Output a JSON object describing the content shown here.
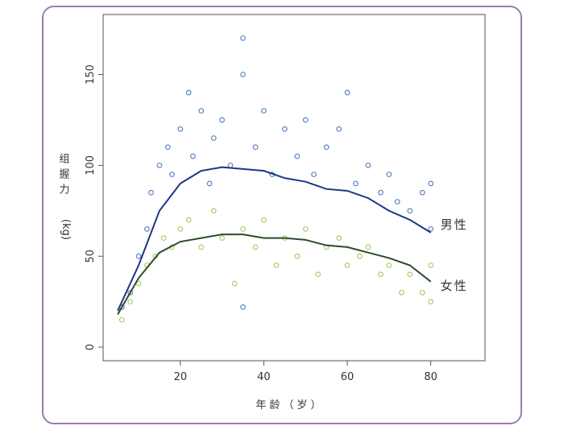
{
  "chart_data": {
    "type": "scatter",
    "xlabel": "年龄（岁）",
    "ylabel": "组握力",
    "ylabel_unit": "(kg)",
    "xlim": [
      1.5,
      93
    ],
    "ylim": [
      -7.5,
      183
    ],
    "xticks": [
      20,
      40,
      60,
      80
    ],
    "yticks": [
      0,
      50,
      100,
      150
    ],
    "series": [
      {
        "type": "scatter",
        "color": "#5b86c2",
        "x": [
          6,
          8,
          10,
          12,
          13,
          15,
          17,
          18,
          20,
          22,
          23,
          25,
          27,
          28,
          30,
          32,
          35,
          35,
          35,
          38,
          40,
          42,
          45,
          48,
          50,
          52,
          55,
          58,
          60,
          62,
          65,
          68,
          70,
          72,
          75,
          78,
          80,
          80
        ],
        "values": [
          22,
          30,
          50,
          65,
          85,
          100,
          110,
          95,
          120,
          140,
          105,
          130,
          90,
          115,
          125,
          100,
          170,
          150,
          22,
          110,
          130,
          95,
          120,
          105,
          125,
          95,
          110,
          120,
          140,
          90,
          100,
          85,
          95,
          80,
          75,
          85,
          90,
          65
        ]
      },
      {
        "type": "scatter",
        "color": "#a9cf6e",
        "x": [
          6,
          8,
          10,
          12,
          14,
          16,
          18,
          20,
          22,
          25,
          28,
          30,
          33,
          35,
          38,
          40,
          43,
          45,
          48,
          50,
          53,
          55,
          58,
          60,
          63,
          65,
          68,
          70,
          73,
          75,
          78,
          80,
          80
        ],
        "values": [
          15,
          25,
          35,
          45,
          50,
          60,
          55,
          65,
          70,
          55,
          75,
          60,
          35,
          65,
          55,
          70,
          45,
          60,
          50,
          65,
          40,
          55,
          60,
          45,
          50,
          55,
          40,
          45,
          30,
          40,
          30,
          25,
          45
        ]
      },
      {
        "type": "line",
        "name": "男性",
        "color": "#1f3585",
        "label_color": "#3b5a9a",
        "x": [
          5,
          10,
          15,
          20,
          25,
          30,
          35,
          40,
          45,
          50,
          55,
          60,
          65,
          70,
          75,
          80
        ],
        "values": [
          20,
          45,
          75,
          90,
          97,
          99,
          98,
          97,
          93,
          91,
          87,
          86,
          82,
          75,
          70,
          63
        ]
      },
      {
        "type": "line",
        "name": "女性",
        "color": "#2d4a2a",
        "label_color": "#9dbd5c",
        "x": [
          5,
          10,
          15,
          20,
          25,
          30,
          35,
          40,
          45,
          50,
          55,
          60,
          65,
          70,
          75,
          80
        ],
        "values": [
          18,
          38,
          52,
          58,
          60,
          62,
          62,
          60,
          60,
          59,
          56,
          55,
          52,
          49,
          45,
          36
        ]
      }
    ]
  }
}
